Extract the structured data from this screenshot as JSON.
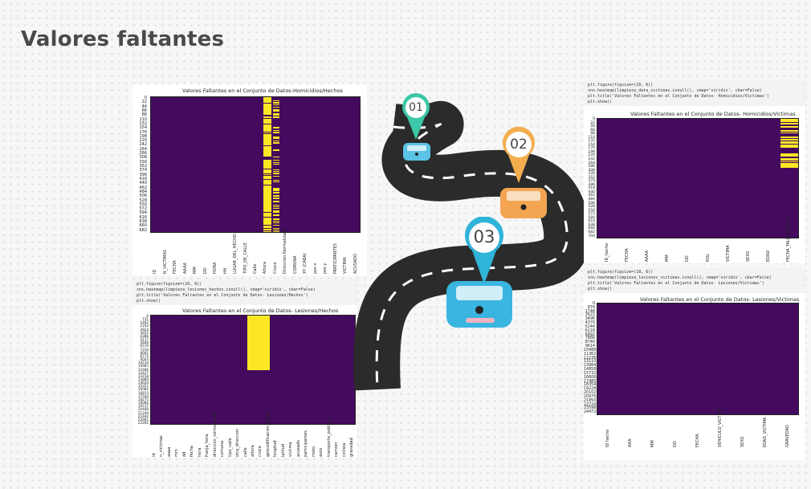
{
  "slide": {
    "title": "Valores faltantes"
  },
  "colors": {
    "heatmap_bg": "#440a5e",
    "heatmap_missing": "#fde725",
    "pin1": "#3cc7a8",
    "pin2": "#f2ad4e",
    "pin3": "#2fb3d8",
    "road": "#2b2b2b"
  },
  "milestones": [
    {
      "label": "01",
      "icon": "map-pin-icon"
    },
    {
      "label": "02",
      "icon": "map-pin-icon"
    },
    {
      "label": "03",
      "icon": "map-pin-icon"
    }
  ],
  "panels": {
    "homicidios_hechos": {
      "title": "Valores Faltantes en el Conjunto de Datos-Homicidios/Hechos",
      "ylabels": [
        "0",
        "22",
        "44",
        "66",
        "88",
        "110",
        "132",
        "154",
        "176",
        "198",
        "220",
        "242",
        "264",
        "286",
        "308",
        "330",
        "352",
        "374",
        "396",
        "418",
        "440",
        "462",
        "484",
        "506",
        "528",
        "550",
        "572",
        "594",
        "616",
        "638",
        "660",
        "682"
      ],
      "xlabels": [
        "ID",
        "N_VICTIMAS",
        "FECHA",
        "AAAA",
        "MM",
        "DD",
        "HORA",
        "HH",
        "LUGAR_DEL_HECHO",
        "TIPO_DE_CALLE",
        "Calle",
        "Altura",
        "Cruce",
        "Direccion Normalizada",
        "COMUNA",
        "XY (CABA)",
        "pos x",
        "pos y",
        "PARTICIPANTES",
        "VICTIMA",
        "ACUSADO"
      ]
    },
    "lesiones_hechos": {
      "code": [
        "plt.figure(figsize=(10, 6))",
        "sns.heatmap(limpieza_lesiones_hechos.isnull(), cmap='viridis', cbar=False)",
        "plt.title('Valores Faltantes en el Conjunto de Datos- Lesiones/Hechos')",
        "plt.show()"
      ],
      "title": "Valores Faltantes en el Conjunto de Datos- Lesiones/Hechos",
      "ylabels": [
        "0",
        "731",
        "1462",
        "2193",
        "2924",
        "3655",
        "4386",
        "5117",
        "5848",
        "6579",
        "7310",
        "8041",
        "8772",
        "9503",
        "10234",
        "10965",
        "11696",
        "12427",
        "13158",
        "13889",
        "14620",
        "15351",
        "16082",
        "16813",
        "17544",
        "18275",
        "19006",
        "19737",
        "20468",
        "21199",
        "21930",
        "22661",
        "23392"
      ],
      "xlabels": [
        "id",
        "n_victimas",
        "aaaa",
        "mm",
        "dd",
        "fecha",
        "hora",
        "franja_hora",
        "direccion_normalizada",
        "comuna",
        "tipo_calle",
        "otra_direccion",
        "calle",
        "altura",
        "cruce",
        "geocodificacion_CABA",
        "longitud",
        "latitud",
        "victima",
        "acusado",
        "participantes",
        "moto",
        "auto",
        "transporte_publico",
        "camion",
        "ciclista",
        "gravedad"
      ]
    },
    "homicidios_victimas": {
      "code": [
        "plt.figure(figsize=(10, 6))",
        "sns.heatmap(limpieza_data_victimas.isnull(), cmap='viridis', cbar=False)",
        "plt.title('Valores Faltantes en el Conjunto de Datos- Homicidios/Victimas')",
        "plt.show()"
      ],
      "title": "Valores Faltantes en el Conjunto de Datos- Homicidios/Victimas",
      "ylabels": [
        "0",
        "22",
        "44",
        "66",
        "88",
        "110",
        "132",
        "154",
        "176",
        "198",
        "220",
        "242",
        "264",
        "286",
        "308",
        "330",
        "352",
        "374",
        "396",
        "418",
        "440",
        "462",
        "484",
        "506",
        "528",
        "550",
        "572",
        "594",
        "616",
        "638",
        "660",
        "682",
        "704"
      ],
      "xlabels": [
        "ID_hecho",
        "FECHA",
        "AAAA",
        "MM",
        "DD",
        "ROL",
        "VICTIMA",
        "SEXO",
        "EDAD",
        "FECHA_FALLECIMIENTO"
      ]
    },
    "lesiones_victimas": {
      "code": [
        "plt.figure(figsize=(10, 6))",
        "sns.heatmap(limpieza_lesiones_victimas.isnull(), cmap='viridis', cbar=False)",
        "plt.title('Valores Faltantes en el Conjunto de Datos- Lesiones/Victimas')",
        "plt.show()"
      ],
      "title": "Valores Faltantes en el Conjunto de Datos- Lesiones/Victimas",
      "ylabels": [
        "0",
        "874",
        "1748",
        "2622",
        "3496",
        "4370",
        "5244",
        "6118",
        "6992",
        "7866",
        "8740",
        "9614",
        "10488",
        "11362",
        "12236",
        "13110",
        "13984",
        "14858",
        "15732",
        "16606",
        "17480",
        "18354",
        "19228",
        "20102",
        "20976",
        "21850",
        "22724",
        "23598",
        "24472"
      ],
      "xlabels": [
        "ID hecho",
        "AAA",
        "MM",
        "DD",
        "FECHA",
        "VEHICULO_VICTIMA",
        "SEXO",
        "EDAD_VICTIMA",
        "GRAVEDAD"
      ]
    }
  }
}
